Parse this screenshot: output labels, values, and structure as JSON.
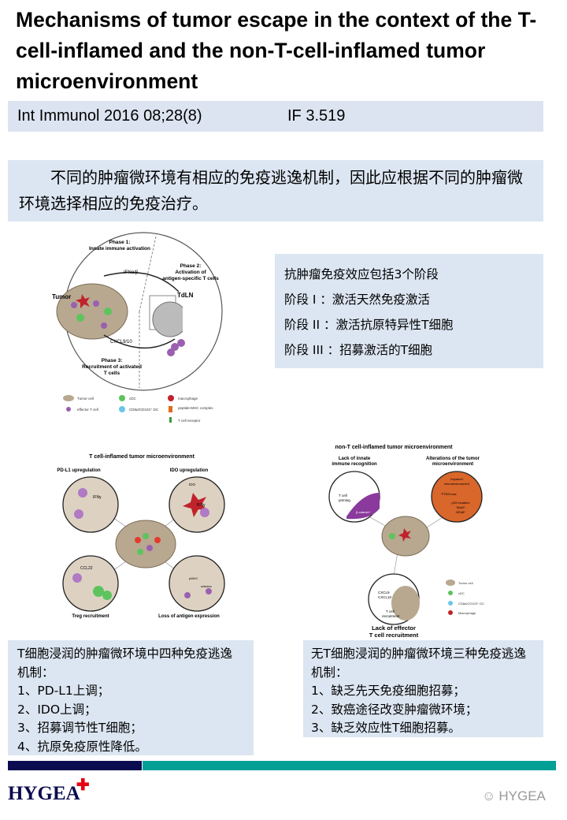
{
  "title": "Mechanisms of tumor escape in the context of the T-cell-inflamed and the non-T-cell-inflamed tumor microenvironment",
  "citation": {
    "journal": "Int Immunol 2016 08;28(8)",
    "impact_factor": "IF 3.519"
  },
  "intro": "不同的肿瘤微环境有相应的免疫逃逸机制，因此应根据不同的肿瘤微环境选择相应的免疫治疗。",
  "phases_box": {
    "heading": "抗肿瘤免疫效应包括3个阶段",
    "items": [
      "阶段 I ：激活天然免疫激活",
      "阶段 II ：激活抗原特异性T细胞",
      "阶段 III ：招募激活的T细胞"
    ]
  },
  "figure1": {
    "phase1": [
      "Phase 1:",
      "Innate immune activation"
    ],
    "phase2": [
      "Phase 2:",
      "Activation of",
      "antigen-specific T cells"
    ],
    "phase3": [
      "Phase 3:",
      "Recruitment of activated",
      "T cells"
    ],
    "tumor": "Tumor",
    "tdln": "TdLN",
    "ifn": "IFNα/β",
    "cxcl": "CXCL9/10",
    "legend": [
      "Tumor cell",
      "cDC",
      "macrophage",
      "effector T cell",
      "CD8α/CD103⁺ DC",
      "peptide-MHC complex",
      "T cell receptor"
    ]
  },
  "figure2": {
    "title": "T cell-inflamed tumor microenvironment",
    "labels": [
      "PD-L1 upregulation",
      "IDO upregulation",
      "Treg recruitment",
      "Loss of antigen expression"
    ],
    "inner": [
      "IFNγ",
      "IDO",
      "IFNγ",
      "CCL22",
      "pMHC",
      "selection"
    ]
  },
  "figure3": {
    "title": "non-T cell-inflamed tumor microenvironment",
    "labels": [
      "Lack of innate",
      "immune recognition",
      "Alterations of the tumor",
      "microenvironment",
      "Lack of effector",
      "T cell recruitment"
    ],
    "inner": [
      "T cell",
      "priming",
      "β-catenin*",
      "impaired",
      "microenvironment",
      "PTEN loss",
      "p53 mutation",
      "Stat3*",
      "NFκB*",
      "CXCL9",
      "CXCL10",
      "T cell",
      "recruitment"
    ],
    "legend": [
      "Tumor cell",
      "cDC",
      "CD8α/CD103⁺ DC",
      "Macrophage"
    ]
  },
  "left_box": {
    "lines": [
      "T细胞浸润的肿瘤微环境中四种免疫逃逸机制：",
      "1、PD-L1上调；",
      "2、IDO上调；",
      "3、招募调节性T细胞；",
      "4、抗原免疫原性降低。"
    ]
  },
  "right_box": {
    "lines": [
      "无T细胞浸润的肿瘤微环境三种免疫逃逸机制：",
      "1、缺乏先天免疫细胞招募；",
      "2、致癌途径改变肿瘤微环境；",
      "3、缺乏效应性T细胞招募。"
    ]
  },
  "footer": {
    "logo": "HYGEA",
    "watermark": "HYGEA"
  },
  "colors": {
    "navy": "#0b0b4f",
    "teal": "#00a096",
    "box_bg": "#dce6f2",
    "logo_cross": "#e60012"
  }
}
